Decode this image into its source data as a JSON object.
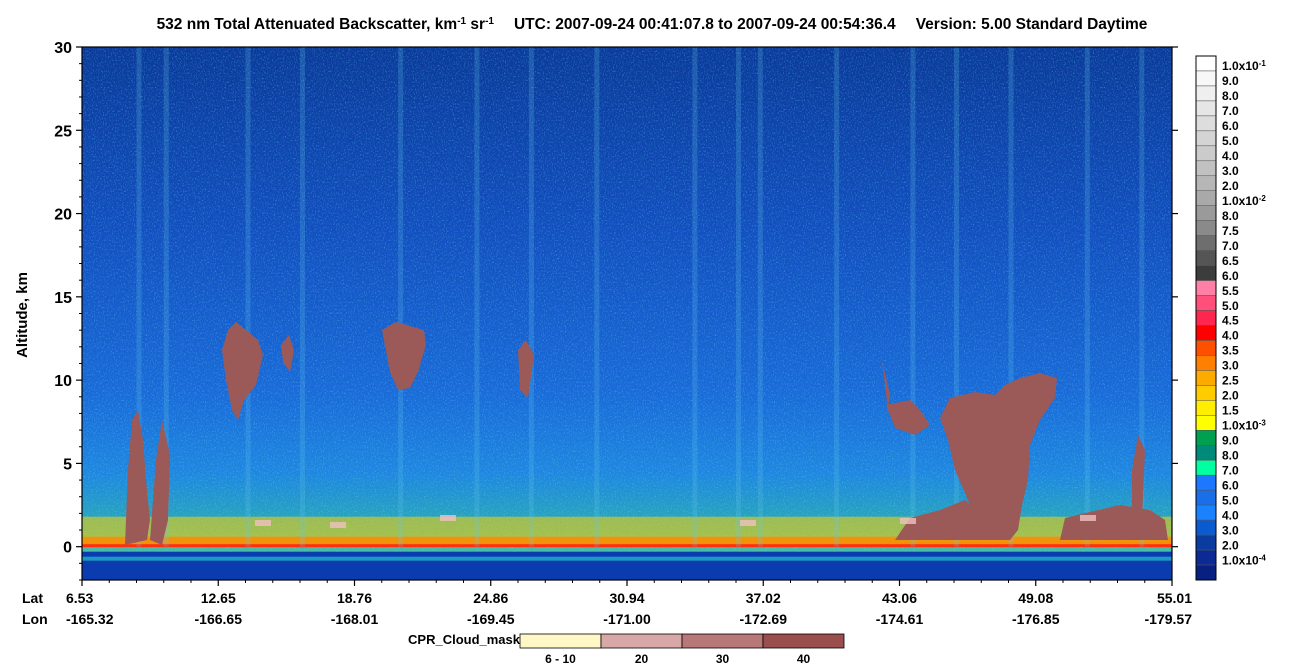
{
  "chart_data": {
    "type": "heatmap",
    "title": {
      "prefix": "532 nm Total Attenuated Backscatter, km",
      "sup1": "-1",
      "mid": " sr",
      "sup2": "-1",
      "utc": "UTC:  2007-09-24 00:41:07.8  to  2007-09-24 00:54:36.4",
      "version": "Version: 5.00  Standard  Daytime"
    },
    "ylabel": "Altitude, km",
    "ylim": [
      -2,
      30
    ],
    "yticks": [
      "0",
      "5",
      "10",
      "15",
      "20",
      "25",
      "30"
    ],
    "ytick_values": [
      0,
      5,
      10,
      15,
      20,
      25,
      30
    ],
    "x_row_labels": {
      "lat": "Lat",
      "lon": "Lon"
    },
    "x_ticks": [
      {
        "lat": "6.53",
        "lon": "-165.32"
      },
      {
        "lat": "12.65",
        "lon": "-166.65"
      },
      {
        "lat": "18.76",
        "lon": "-168.01"
      },
      {
        "lat": "24.86",
        "lon": "-169.45"
      },
      {
        "lat": "30.94",
        "lon": "-171.00"
      },
      {
        "lat": "37.02",
        "lon": "-172.69"
      },
      {
        "lat": "43.06",
        "lon": "-174.61"
      },
      {
        "lat": "49.08",
        "lon": "-176.85"
      },
      {
        "lat": "55.01",
        "lon": "-179.57"
      }
    ],
    "colorbar": [
      {
        "label": "1.0x10",
        "exp": "-1",
        "color": "#ffffff"
      },
      {
        "label": "9.0",
        "color": "#f7f7f7"
      },
      {
        "label": "8.0",
        "color": "#efefef"
      },
      {
        "label": "7.0",
        "color": "#e6e6e6"
      },
      {
        "label": "6.0",
        "color": "#dddddd"
      },
      {
        "label": "5.0",
        "color": "#d4d4d4"
      },
      {
        "label": "4.0",
        "color": "#cbcbcb"
      },
      {
        "label": "3.0",
        "color": "#c1c1c1"
      },
      {
        "label": "2.0",
        "color": "#b6b6b6"
      },
      {
        "label": "1.0x10",
        "exp": "-2",
        "color": "#a9a9a9"
      },
      {
        "label": "8.0",
        "color": "#9a9a9a"
      },
      {
        "label": "7.5",
        "color": "#8a8a8a"
      },
      {
        "label": "7.0",
        "color": "#6e6e6e"
      },
      {
        "label": "6.5",
        "color": "#555555"
      },
      {
        "label": "6.0",
        "color": "#3c3c3c"
      },
      {
        "label": "5.5",
        "color": "#ff7fa6"
      },
      {
        "label": "5.0",
        "color": "#ff4f7a"
      },
      {
        "label": "4.5",
        "color": "#ff2750"
      },
      {
        "label": "4.0",
        "color": "#ff0000"
      },
      {
        "label": "3.5",
        "color": "#ff5000"
      },
      {
        "label": "3.0",
        "color": "#ff8000"
      },
      {
        "label": "2.5",
        "color": "#ffaa00"
      },
      {
        "label": "2.0",
        "color": "#ffcc00"
      },
      {
        "label": "1.5",
        "color": "#ffee00"
      },
      {
        "label": "1.0x10",
        "exp": "-3",
        "color": "#ffff00"
      },
      {
        "label": "9.0",
        "color": "#00a050"
      },
      {
        "label": "8.0",
        "color": "#008a7a"
      },
      {
        "label": "7.0",
        "color": "#00ffa0"
      },
      {
        "label": "6.0",
        "color": "#1e78ff"
      },
      {
        "label": "5.0",
        "color": "#1a6ee8"
      },
      {
        "label": "4.0",
        "color": "#1a82ff"
      },
      {
        "label": "3.0",
        "color": "#0a5ad2"
      },
      {
        "label": "2.0",
        "color": "#0a3ca0"
      },
      {
        "label": "1.0x10",
        "exp": "-4",
        "color": "#0b2a96"
      },
      {
        "label": "",
        "color": "#082082"
      }
    ],
    "cloud_mask": {
      "title": "CPR_Cloud_mask",
      "bins": [
        {
          "label": "6 - 10",
          "color": "#fff8c6"
        },
        {
          "label": "20",
          "color": "#d8a8a8"
        },
        {
          "label": "30",
          "color": "#b87878"
        },
        {
          "label": "40",
          "color": "#9b4e4e"
        }
      ]
    },
    "colors": {
      "cloud": "#9b5a58",
      "background_upper": "#0b3a9a",
      "background_mid": "#1a6ad8",
      "surface_line": "#ff3010"
    }
  }
}
